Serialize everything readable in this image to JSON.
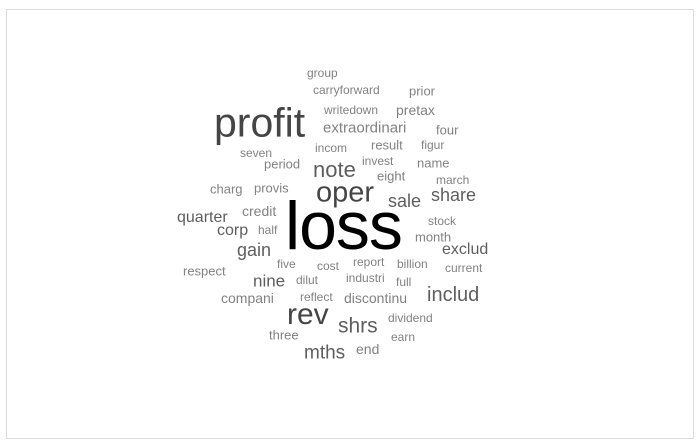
{
  "cloud": {
    "words": [
      {
        "text": "loss",
        "weight": 1.0
      },
      {
        "text": "profit",
        "weight": 0.62
      },
      {
        "text": "rev",
        "weight": 0.44
      },
      {
        "text": "oper",
        "weight": 0.43
      },
      {
        "text": "note",
        "weight": 0.33
      },
      {
        "text": "shrs",
        "weight": 0.31
      },
      {
        "text": "includ",
        "weight": 0.3
      },
      {
        "text": "mths",
        "weight": 0.29
      },
      {
        "text": "share",
        "weight": 0.28
      },
      {
        "text": "sale",
        "weight": 0.28
      },
      {
        "text": "gain",
        "weight": 0.27
      },
      {
        "text": "nine",
        "weight": 0.26
      },
      {
        "text": "exclud",
        "weight": 0.25
      },
      {
        "text": "quarter",
        "weight": 0.24
      },
      {
        "text": "corp",
        "weight": 0.24
      },
      {
        "text": "extraordinari",
        "weight": 0.22
      },
      {
        "text": "compani",
        "weight": 0.21
      },
      {
        "text": "pretax",
        "weight": 0.21
      },
      {
        "text": "discontinu",
        "weight": 0.21
      },
      {
        "text": "credit",
        "weight": 0.2
      },
      {
        "text": "eight",
        "weight": 0.2
      },
      {
        "text": "period",
        "weight": 0.19
      },
      {
        "text": "result",
        "weight": 0.19
      },
      {
        "text": "month",
        "weight": 0.19
      },
      {
        "text": "end",
        "weight": 0.19
      },
      {
        "text": "respect",
        "weight": 0.18
      },
      {
        "text": "prior",
        "weight": 0.18
      },
      {
        "text": "four",
        "weight": 0.18
      },
      {
        "text": "charg",
        "weight": 0.18
      },
      {
        "text": "provis",
        "weight": 0.18
      },
      {
        "text": "name",
        "weight": 0.18
      },
      {
        "text": "three",
        "weight": 0.18
      },
      {
        "text": "carryforward",
        "weight": 0.17
      },
      {
        "text": "writedown",
        "weight": 0.17
      },
      {
        "text": "seven",
        "weight": 0.17
      },
      {
        "text": "incom",
        "weight": 0.17
      },
      {
        "text": "invest",
        "weight": 0.17
      },
      {
        "text": "figur",
        "weight": 0.17
      },
      {
        "text": "march",
        "weight": 0.17
      },
      {
        "text": "stock",
        "weight": 0.17
      },
      {
        "text": "half",
        "weight": 0.17
      },
      {
        "text": "five",
        "weight": 0.17
      },
      {
        "text": "cost",
        "weight": 0.17
      },
      {
        "text": "report",
        "weight": 0.17
      },
      {
        "text": "billion",
        "weight": 0.17
      },
      {
        "text": "current",
        "weight": 0.17
      },
      {
        "text": "dilut",
        "weight": 0.17
      },
      {
        "text": "industri",
        "weight": 0.17
      },
      {
        "text": "full",
        "weight": 0.17
      },
      {
        "text": "reflect",
        "weight": 0.17
      },
      {
        "text": "dividend",
        "weight": 0.17
      },
      {
        "text": "earn",
        "weight": 0.17
      },
      {
        "text": "group",
        "weight": 0.16
      }
    ]
  }
}
